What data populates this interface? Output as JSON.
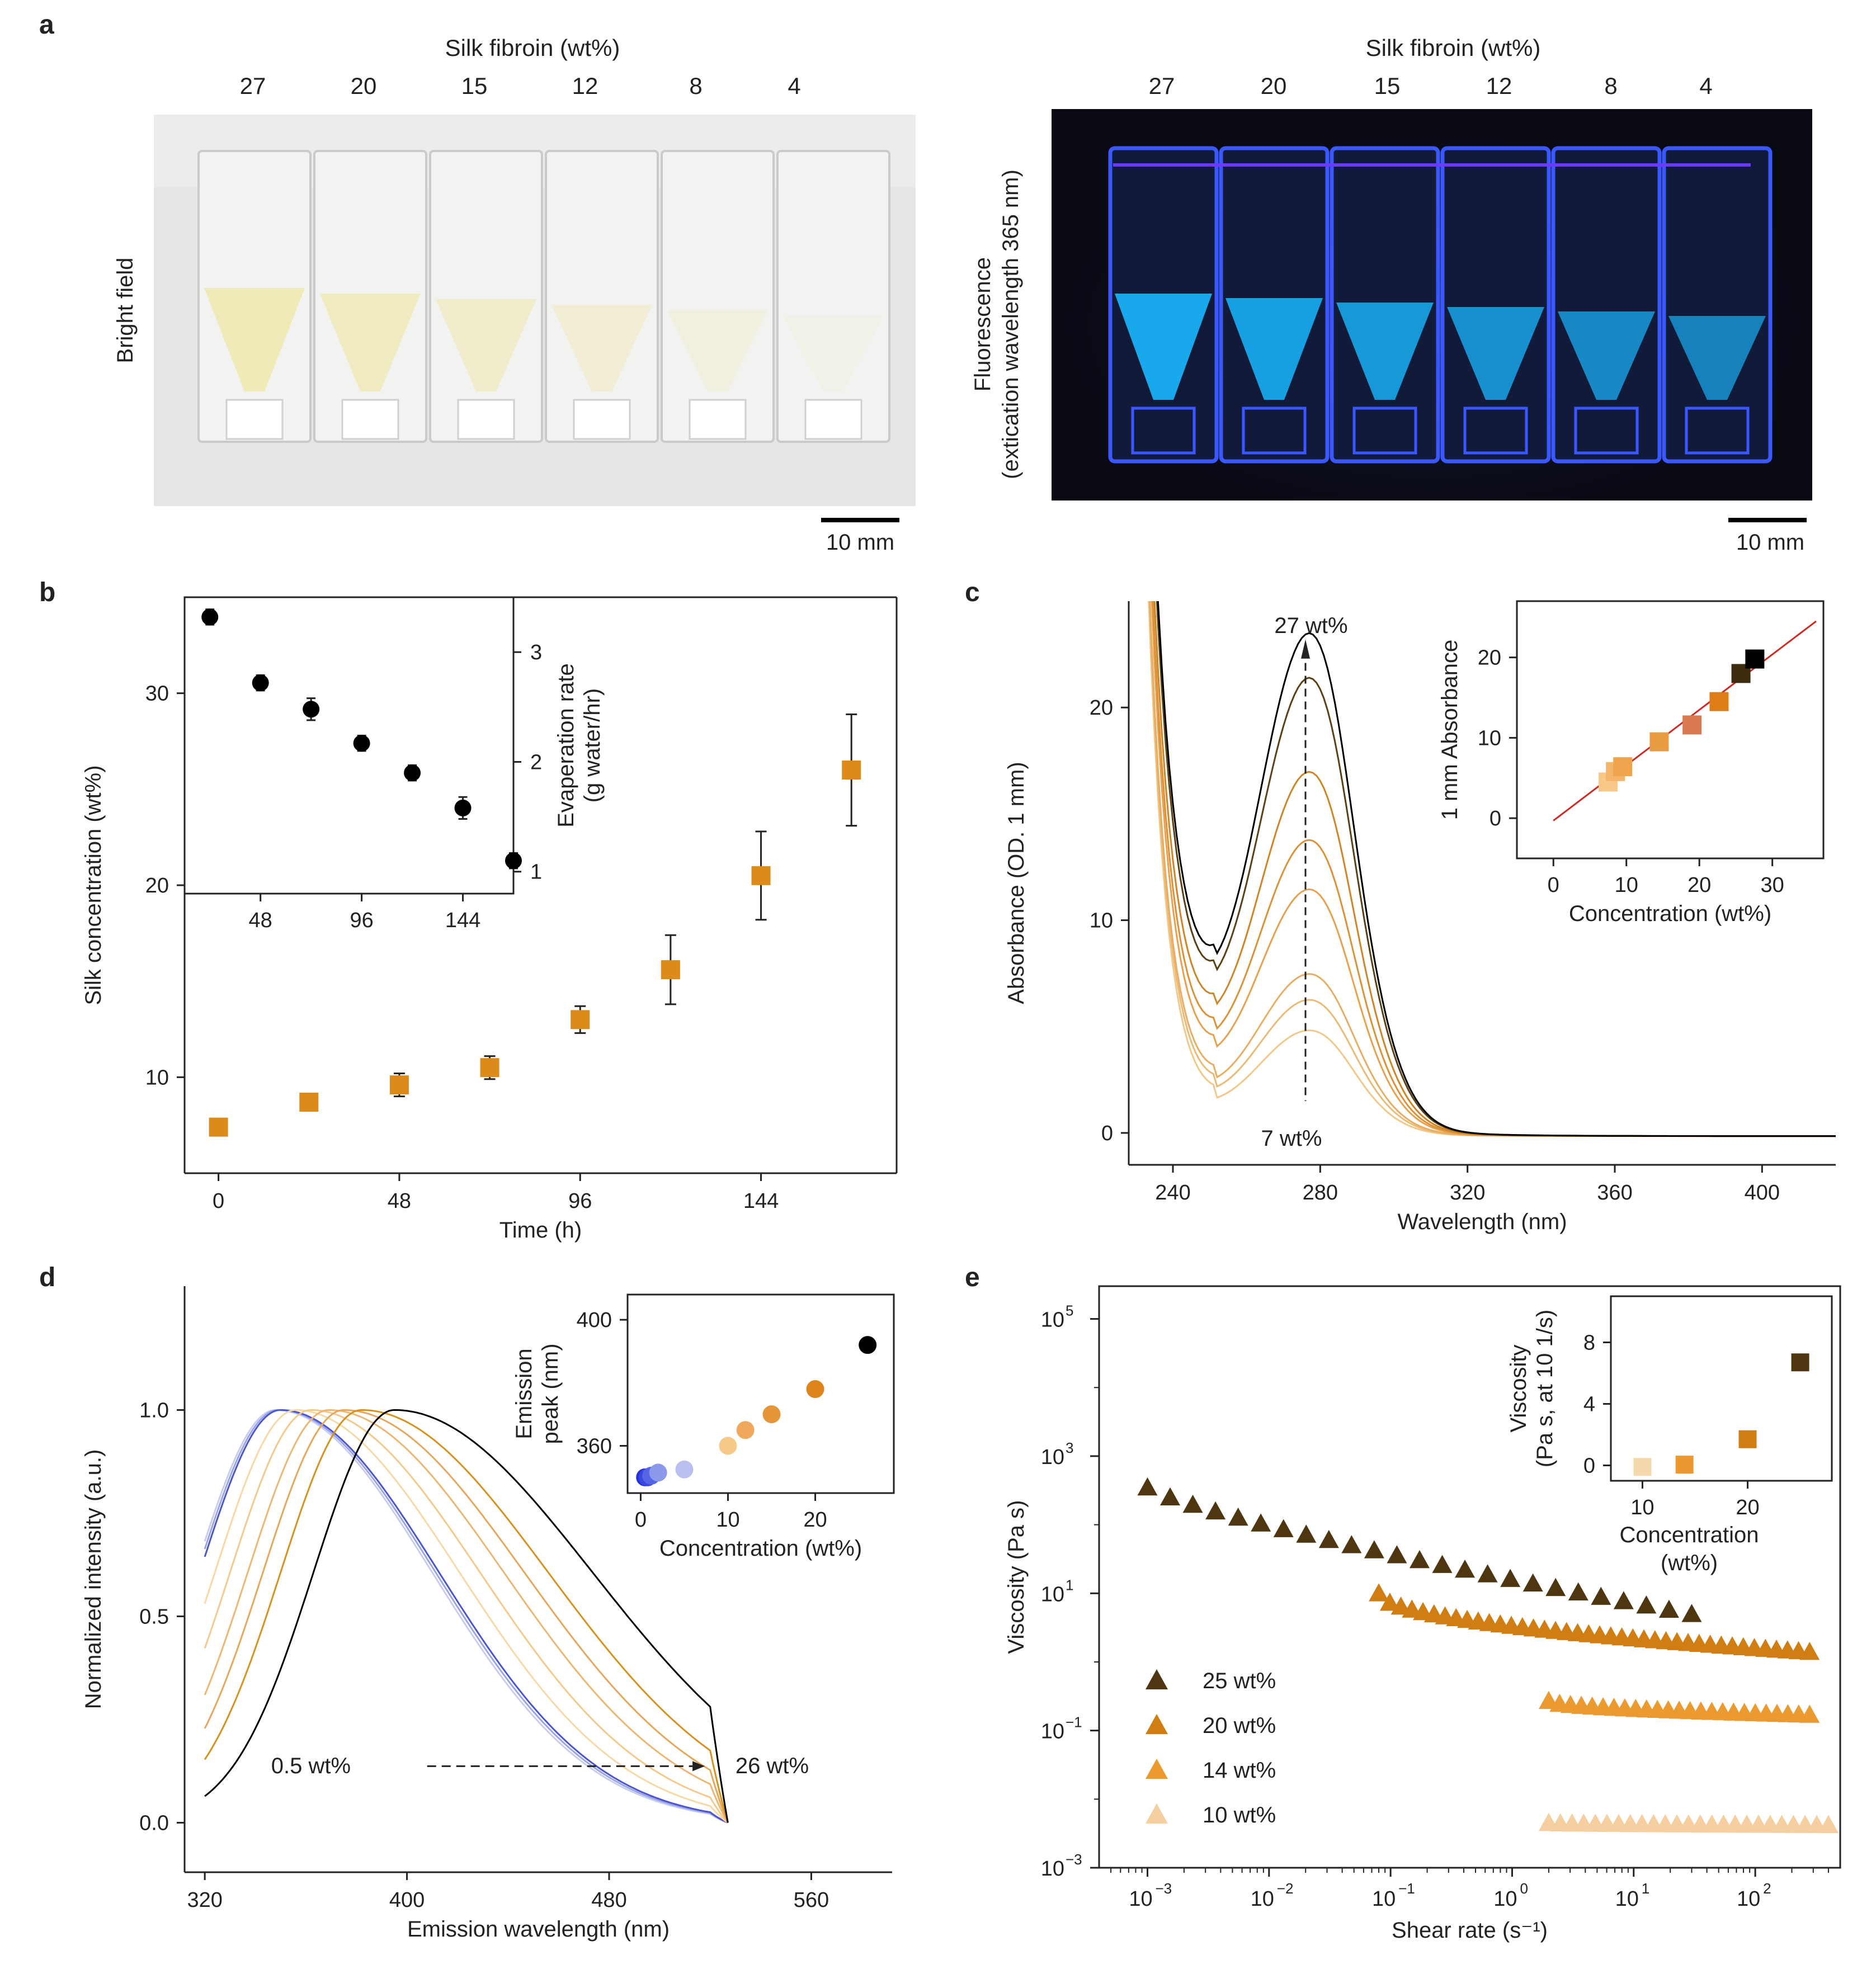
{
  "panel_a": {
    "label": "a",
    "top_title": "Silk fibroin (wt%)",
    "concentrations": [
      "27",
      "20",
      "15",
      "12",
      "8",
      "4"
    ],
    "left_side_label": "Bright field",
    "right_side_label_1": "Fluorescence",
    "right_side_label_2": "(extication wavelength 365 nm)",
    "scale_bar": "10 mm",
    "colors": {
      "bright_bg": "#e7e8e6",
      "dark_bg": "#0a0a14",
      "liquid_bright": "#efe8b4",
      "liquid_fluor": "#19b8ff",
      "cuvette_glow": "#3b57ff"
    },
    "bright_liquid_alpha": [
      0.95,
      0.8,
      0.6,
      0.45,
      0.3,
      0.15
    ]
  },
  "chart_data": [
    {
      "panel": "b",
      "type": "scatter",
      "xlabel": "Time (h)",
      "ylabel": "Silk concentration (wt%)",
      "xticks": [
        "0",
        "48",
        "96",
        "144"
      ],
      "yticks": [
        "10",
        "20",
        "30"
      ],
      "xlim": [
        -9,
        180
      ],
      "ylim": [
        5,
        35
      ],
      "marker_color": "#dc8a1a",
      "x": [
        0,
        24,
        48,
        72,
        96,
        120,
        144,
        168
      ],
      "y": [
        7.4,
        8.7,
        9.6,
        10.5,
        13.0,
        15.6,
        20.5,
        26.0
      ],
      "err": [
        0.3,
        0.3,
        0.6,
        0.6,
        0.7,
        1.8,
        2.3,
        2.9
      ],
      "inset": {
        "ylabel_1": "Evaperation rate",
        "ylabel_2": "(g water/hr)",
        "xticks": [
          "48",
          "96",
          "144"
        ],
        "yticks": [
          "1",
          "2",
          "3"
        ],
        "xlim": [
          12,
          168
        ],
        "ylim": [
          0.8,
          3.5
        ],
        "marker_color": "#000000",
        "x": [
          24,
          48,
          72,
          96,
          120,
          144,
          168
        ],
        "y": [
          3.32,
          2.72,
          2.48,
          2.17,
          1.9,
          1.58,
          1.1
        ],
        "err": [
          0.07,
          0.07,
          0.1,
          0.07,
          0.07,
          0.1,
          0.07
        ]
      }
    },
    {
      "panel": "c",
      "type": "line",
      "xlabel": "Wavelength (nm)",
      "ylabel": "Absorbance (OD. 1 mm)",
      "xticks": [
        "240",
        "280",
        "320",
        "360",
        "400"
      ],
      "yticks": [
        "0",
        "10",
        "20"
      ],
      "xlim": [
        228,
        420
      ],
      "ylim": [
        -1.5,
        25
      ],
      "annotation_top": "27 wt%",
      "annotation_bottom": "7 wt%",
      "peak_wavelength": 276,
      "series": [
        {
          "peak": 4.5,
          "color": "#f0c88a"
        },
        {
          "peak": 5.8,
          "color": "#ebba75"
        },
        {
          "peak": 6.9,
          "color": "#e8ad62"
        },
        {
          "peak": 10.5,
          "color": "#e6a04e"
        },
        {
          "peak": 12.6,
          "color": "#dc9136"
        },
        {
          "peak": 15.5,
          "color": "#cf8526"
        },
        {
          "peak": 19.5,
          "color": "#5a4012"
        },
        {
          "peak": 21.4,
          "color": "#000000"
        }
      ],
      "inset": {
        "xlabel": "Concentration (wt%)",
        "ylabel": "1 mm Absorbance",
        "xticks": [
          "0",
          "10",
          "20",
          "30"
        ],
        "yticks": [
          "0",
          "10",
          "20"
        ],
        "xlim": [
          -5,
          37
        ],
        "ylim": [
          -5,
          27
        ],
        "fit_color": "#cc2a22",
        "fit_x": [
          0,
          36
        ],
        "fit_y": [
          -0.3,
          24.5
        ],
        "x": [
          7.5,
          8.5,
          9.5,
          14.5,
          19.0,
          22.7,
          25.7,
          27.6
        ],
        "y": [
          4.5,
          5.8,
          6.4,
          9.5,
          11.6,
          14.5,
          18.0,
          19.8
        ],
        "colors": [
          "#f8c888",
          "#f2b56a",
          "#eea34d",
          "#e99b42",
          "#d97a50",
          "#de7c18",
          "#3e2c10",
          "#000000"
        ]
      }
    },
    {
      "panel": "d",
      "type": "line",
      "xlabel": "Emission wavelength (nm)",
      "ylabel": "Normalized intensity (a.u.)",
      "xticks": [
        "320",
        "400",
        "480",
        "560"
      ],
      "yticks": [
        "0.0",
        "0.5",
        "1.0"
      ],
      "xlim": [
        312,
        592
      ],
      "ylim": [
        -0.12,
        1.3
      ],
      "annotation_left": "0.5 wt%",
      "annotation_right": "26 wt%",
      "series": [
        {
          "peak": 348,
          "color": "#c8cdf0"
        },
        {
          "peak": 349,
          "color": "#9aa4e6"
        },
        {
          "peak": 350,
          "color": "#4b56cc"
        },
        {
          "peak": 356,
          "color": "#f7d9a7"
        },
        {
          "peak": 362,
          "color": "#f3c98c"
        },
        {
          "peak": 369,
          "color": "#ecb773"
        },
        {
          "peak": 375,
          "color": "#e6a75c"
        },
        {
          "peak": 382,
          "color": "#d6921f"
        },
        {
          "peak": 395,
          "color": "#000000"
        }
      ],
      "inset": {
        "xlabel": "Concentration (wt%)",
        "ylabel_1": "Emission",
        "ylabel_2": "peak (nm)",
        "xticks": [
          "0",
          "10",
          "20"
        ],
        "yticks": [
          "360",
          "400"
        ],
        "xlim": [
          -1.5,
          29
        ],
        "ylim": [
          345,
          408
        ],
        "x": [
          0.5,
          0.8,
          1.2,
          2.0,
          5.0,
          10.0,
          12.0,
          15.0,
          20.0,
          26.0
        ],
        "y": [
          350,
          350,
          350.5,
          351.5,
          352.5,
          360,
          365,
          370,
          378,
          392
        ],
        "colors": [
          "#2433dd",
          "#3848dd",
          "#5563e5",
          "#8c98ea",
          "#b9c0f0",
          "#f6c988",
          "#efa85c",
          "#e69638",
          "#dd841c",
          "#000000"
        ]
      }
    },
    {
      "panel": "e",
      "type": "scatter",
      "xlabel": "Shear rate (s⁻¹)",
      "ylabel": "Viscosity (Pa s)",
      "x_scale": "log",
      "y_scale": "log",
      "xlim": [
        0.0004,
        500
      ],
      "ylim": [
        0.001,
        300000
      ],
      "xticks_base": [
        "10",
        "10",
        "10",
        "10",
        "10",
        "10"
      ],
      "xticks_exp": [
        "−3",
        "−2",
        "−1",
        "0",
        "1",
        "2"
      ],
      "yticks_base": [
        "10",
        "10",
        "10",
        "10",
        "10"
      ],
      "yticks_exp": [
        "−3",
        "−1",
        "1",
        "3",
        "5"
      ],
      "series": [
        {
          "name": "25 wt%",
          "color": "#4e3710",
          "x_start": 0.001,
          "x_end": 30,
          "n": 25,
          "y_start": 350,
          "y_end": 5
        },
        {
          "name": "20 wt%",
          "color": "#d07d14",
          "x_start": 0.08,
          "x_end": 280,
          "n": 40,
          "y_start": 10,
          "y_end": 1.4
        },
        {
          "name": "14 wt%",
          "color": "#eb9a30",
          "x_start": 2,
          "x_end": 280,
          "n": 25,
          "y_start": 0.27,
          "y_end": 0.17
        },
        {
          "name": "10 wt%",
          "color": "#f5cfa0",
          "x_start": 2,
          "x_end": 400,
          "n": 25,
          "y_start": 0.0045,
          "y_end": 0.0042
        }
      ],
      "inset": {
        "xlabel_1": "Concentration",
        "xlabel_2": "(wt%)",
        "ylabel_1": "Viscosity",
        "ylabel_2": "(Pa s, at 10 1/s)",
        "xticks": [
          "10",
          "20"
        ],
        "yticks": [
          "0",
          "4",
          "8"
        ],
        "xlim": [
          7,
          28
        ],
        "ylim": [
          -1,
          11
        ],
        "x": [
          10,
          14,
          20,
          25
        ],
        "y": [
          -0.1,
          0.05,
          1.7,
          6.7
        ],
        "colors": [
          "#f5d8ae",
          "#eb9830",
          "#d07d14",
          "#4e3710"
        ]
      }
    }
  ],
  "panel_labels": {
    "b": "b",
    "c": "c",
    "d": "d",
    "e": "e"
  }
}
